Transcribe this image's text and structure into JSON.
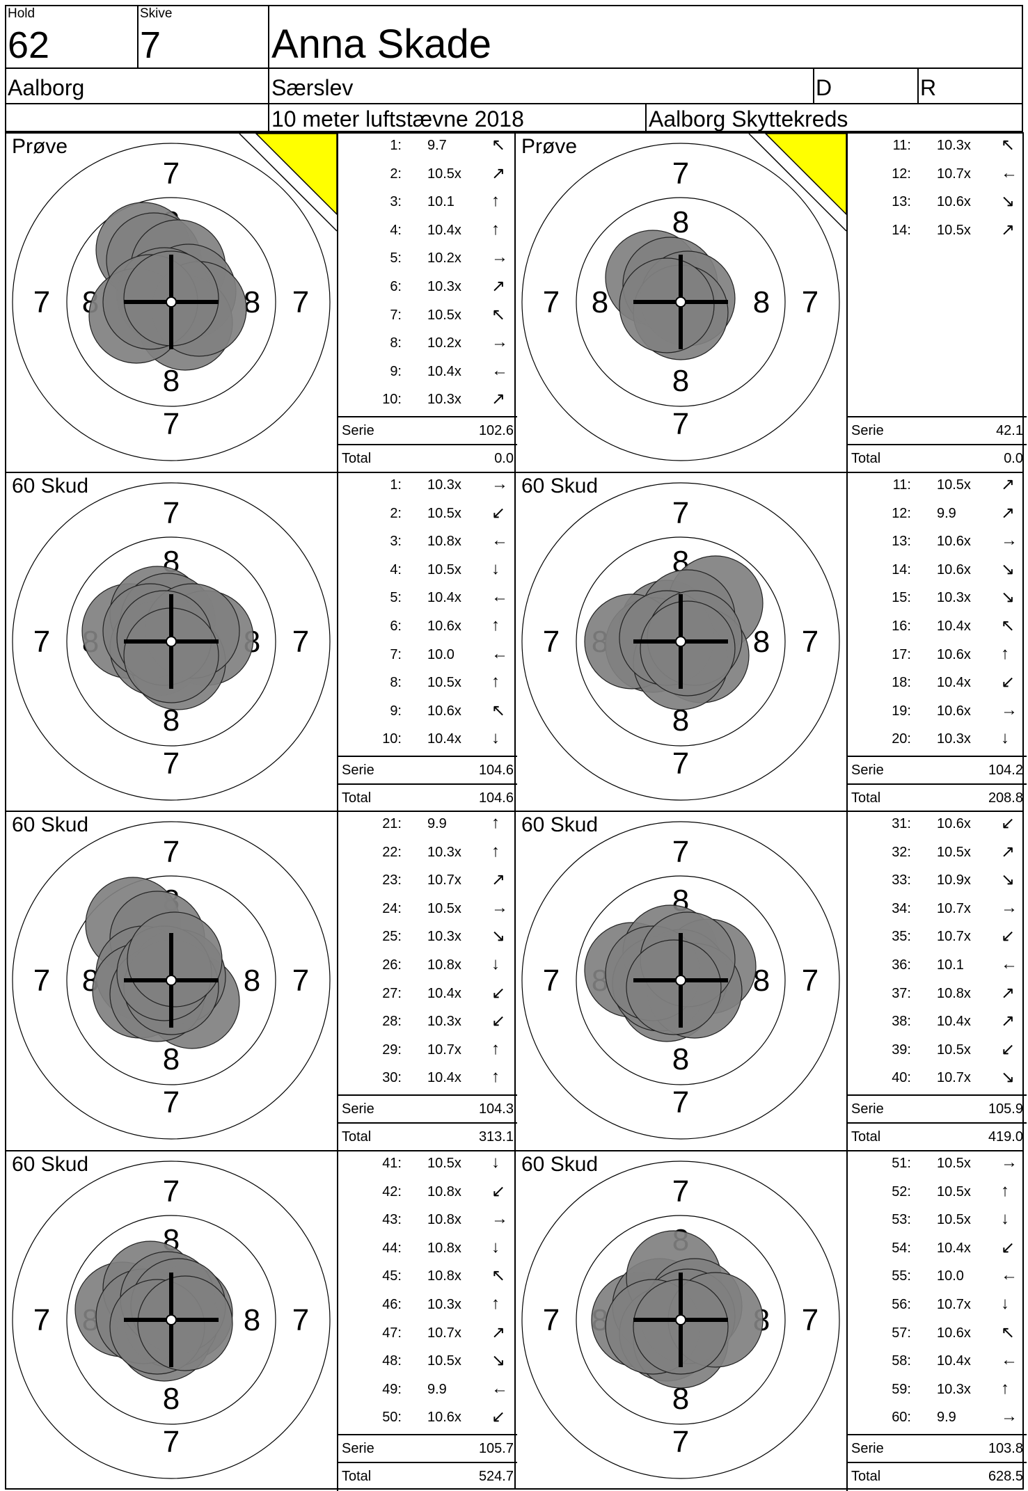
{
  "header": {
    "hold_label": "Hold",
    "hold_value": "62",
    "skive_label": "Skive",
    "skive_value": "7",
    "shooter_name": "Anna Skade",
    "club": "Aalborg",
    "location": "Særslev",
    "d_label": "D",
    "r_label": "R",
    "event": "10 meter luftstævne 2018",
    "organizer": "Aalborg Skyttekreds"
  },
  "panels": [
    {
      "label": "Prøve",
      "flag": true,
      "ring8_labels": "all",
      "shots": [
        {
          "n": "1:",
          "v": "9.7",
          "a": "↖"
        },
        {
          "n": "2:",
          "v": "10.5x",
          "a": "↗"
        },
        {
          "n": "3:",
          "v": "10.1",
          "a": "↑"
        },
        {
          "n": "4:",
          "v": "10.4x",
          "a": "↑"
        },
        {
          "n": "5:",
          "v": "10.2x",
          "a": "→"
        },
        {
          "n": "6:",
          "v": "10.3x",
          "a": "↗"
        },
        {
          "n": "7:",
          "v": "10.5x",
          "a": "↖"
        },
        {
          "n": "8:",
          "v": "10.2x",
          "a": "→"
        },
        {
          "n": "9:",
          "v": "10.4x",
          "a": "←"
        },
        {
          "n": "10:",
          "v": "10.3x",
          "a": "↗"
        }
      ],
      "serie_label": "Serie",
      "serie": "102.6",
      "total_label": "Total",
      "total": "0.0"
    },
    {
      "label": "Prøve",
      "flag": true,
      "ring8_labels": "all",
      "shots": [
        {
          "n": "11:",
          "v": "10.3x",
          "a": "↖"
        },
        {
          "n": "12:",
          "v": "10.7x",
          "a": "←"
        },
        {
          "n": "13:",
          "v": "10.6x",
          "a": "↘"
        },
        {
          "n": "14:",
          "v": "10.5x",
          "a": "↗"
        }
      ],
      "serie_label": "Serie",
      "serie": "42.1",
      "total_label": "Total",
      "total": "0.0"
    },
    {
      "label": "60 Skud",
      "flag": false,
      "ring8_labels": "all",
      "shots": [
        {
          "n": "1:",
          "v": "10.3x",
          "a": "→"
        },
        {
          "n": "2:",
          "v": "10.5x",
          "a": "↙"
        },
        {
          "n": "3:",
          "v": "10.8x",
          "a": "←"
        },
        {
          "n": "4:",
          "v": "10.5x",
          "a": "↓"
        },
        {
          "n": "5:",
          "v": "10.4x",
          "a": "←"
        },
        {
          "n": "6:",
          "v": "10.6x",
          "a": "↑"
        },
        {
          "n": "7:",
          "v": "10.0",
          "a": "←"
        },
        {
          "n": "8:",
          "v": "10.5x",
          "a": "↑"
        },
        {
          "n": "9:",
          "v": "10.6x",
          "a": "↖"
        },
        {
          "n": "10:",
          "v": "10.4x",
          "a": "↓"
        }
      ],
      "serie_label": "Serie",
      "serie": "104.6",
      "total_label": "Total",
      "total": "104.6"
    },
    {
      "label": "60 Skud",
      "flag": false,
      "ring8_labels": "all",
      "shots": [
        {
          "n": "11:",
          "v": "10.5x",
          "a": "↗"
        },
        {
          "n": "12:",
          "v": "9.9",
          "a": "↗"
        },
        {
          "n": "13:",
          "v": "10.6x",
          "a": "→"
        },
        {
          "n": "14:",
          "v": "10.6x",
          "a": "↘"
        },
        {
          "n": "15:",
          "v": "10.3x",
          "a": "↘"
        },
        {
          "n": "16:",
          "v": "10.4x",
          "a": "↖"
        },
        {
          "n": "17:",
          "v": "10.6x",
          "a": "↑"
        },
        {
          "n": "18:",
          "v": "10.4x",
          "a": "↙"
        },
        {
          "n": "19:",
          "v": "10.6x",
          "a": "→"
        },
        {
          "n": "20:",
          "v": "10.3x",
          "a": "↓"
        }
      ],
      "serie_label": "Serie",
      "serie": "104.2",
      "total_label": "Total",
      "total": "208.8"
    },
    {
      "label": "60 Skud",
      "flag": false,
      "ring8_labels": "all",
      "shots": [
        {
          "n": "21:",
          "v": "9.9",
          "a": "↑"
        },
        {
          "n": "22:",
          "v": "10.3x",
          "a": "↑"
        },
        {
          "n": "23:",
          "v": "10.7x",
          "a": "↗"
        },
        {
          "n": "24:",
          "v": "10.5x",
          "a": "→"
        },
        {
          "n": "25:",
          "v": "10.3x",
          "a": "↘"
        },
        {
          "n": "26:",
          "v": "10.8x",
          "a": "↓"
        },
        {
          "n": "27:",
          "v": "10.4x",
          "a": "↙"
        },
        {
          "n": "28:",
          "v": "10.3x",
          "a": "↙"
        },
        {
          "n": "29:",
          "v": "10.7x",
          "a": "↑"
        },
        {
          "n": "30:",
          "v": "10.4x",
          "a": "↑"
        }
      ],
      "serie_label": "Serie",
      "serie": "104.3",
      "total_label": "Total",
      "total": "313.1"
    },
    {
      "label": "60 Skud",
      "flag": false,
      "ring8_labels": "all",
      "shots": [
        {
          "n": "31:",
          "v": "10.6x",
          "a": "↙"
        },
        {
          "n": "32:",
          "v": "10.5x",
          "a": "↗"
        },
        {
          "n": "33:",
          "v": "10.9x",
          "a": "↘"
        },
        {
          "n": "34:",
          "v": "10.7x",
          "a": "→"
        },
        {
          "n": "35:",
          "v": "10.7x",
          "a": "↙"
        },
        {
          "n": "36:",
          "v": "10.1",
          "a": "←"
        },
        {
          "n": "37:",
          "v": "10.8x",
          "a": "↗"
        },
        {
          "n": "38:",
          "v": "10.4x",
          "a": "↗"
        },
        {
          "n": "39:",
          "v": "10.5x",
          "a": "↙"
        },
        {
          "n": "40:",
          "v": "10.7x",
          "a": "↘"
        }
      ],
      "serie_label": "Serie",
      "serie": "105.9",
      "total_label": "Total",
      "total": "419.0"
    },
    {
      "label": "60 Skud",
      "flag": false,
      "ring8_labels": "all",
      "shots": [
        {
          "n": "41:",
          "v": "10.5x",
          "a": "↓"
        },
        {
          "n": "42:",
          "v": "10.8x",
          "a": "↙"
        },
        {
          "n": "43:",
          "v": "10.8x",
          "a": "→"
        },
        {
          "n": "44:",
          "v": "10.8x",
          "a": "↓"
        },
        {
          "n": "45:",
          "v": "10.8x",
          "a": "↖"
        },
        {
          "n": "46:",
          "v": "10.3x",
          "a": "↑"
        },
        {
          "n": "47:",
          "v": "10.7x",
          "a": "↗"
        },
        {
          "n": "48:",
          "v": "10.5x",
          "a": "↘"
        },
        {
          "n": "49:",
          "v": "9.9",
          "a": "←"
        },
        {
          "n": "50:",
          "v": "10.6x",
          "a": "↙"
        }
      ],
      "serie_label": "Serie",
      "serie": "105.7",
      "total_label": "Total",
      "total": "524.7"
    },
    {
      "label": "60 Skud",
      "flag": false,
      "ring8_labels": "all",
      "shots": [
        {
          "n": "51:",
          "v": "10.5x",
          "a": "→"
        },
        {
          "n": "52:",
          "v": "10.5x",
          "a": "↑"
        },
        {
          "n": "53:",
          "v": "10.5x",
          "a": "↓"
        },
        {
          "n": "54:",
          "v": "10.4x",
          "a": "↙"
        },
        {
          "n": "55:",
          "v": "10.0",
          "a": "←"
        },
        {
          "n": "56:",
          "v": "10.7x",
          "a": "↓"
        },
        {
          "n": "57:",
          "v": "10.6x",
          "a": "↖"
        },
        {
          "n": "58:",
          "v": "10.4x",
          "a": "←"
        },
        {
          "n": "59:",
          "v": "10.3x",
          "a": "↑"
        },
        {
          "n": "60:",
          "v": "9.9",
          "a": "→"
        }
      ],
      "serie_label": "Serie",
      "serie": "103.8",
      "total_label": "Total",
      "total": "628.5"
    }
  ],
  "target": {
    "ring_outer_label": "7",
    "ring_inner_label": "8",
    "shot_fill": "#808080",
    "flag_color": "#ffff00"
  }
}
